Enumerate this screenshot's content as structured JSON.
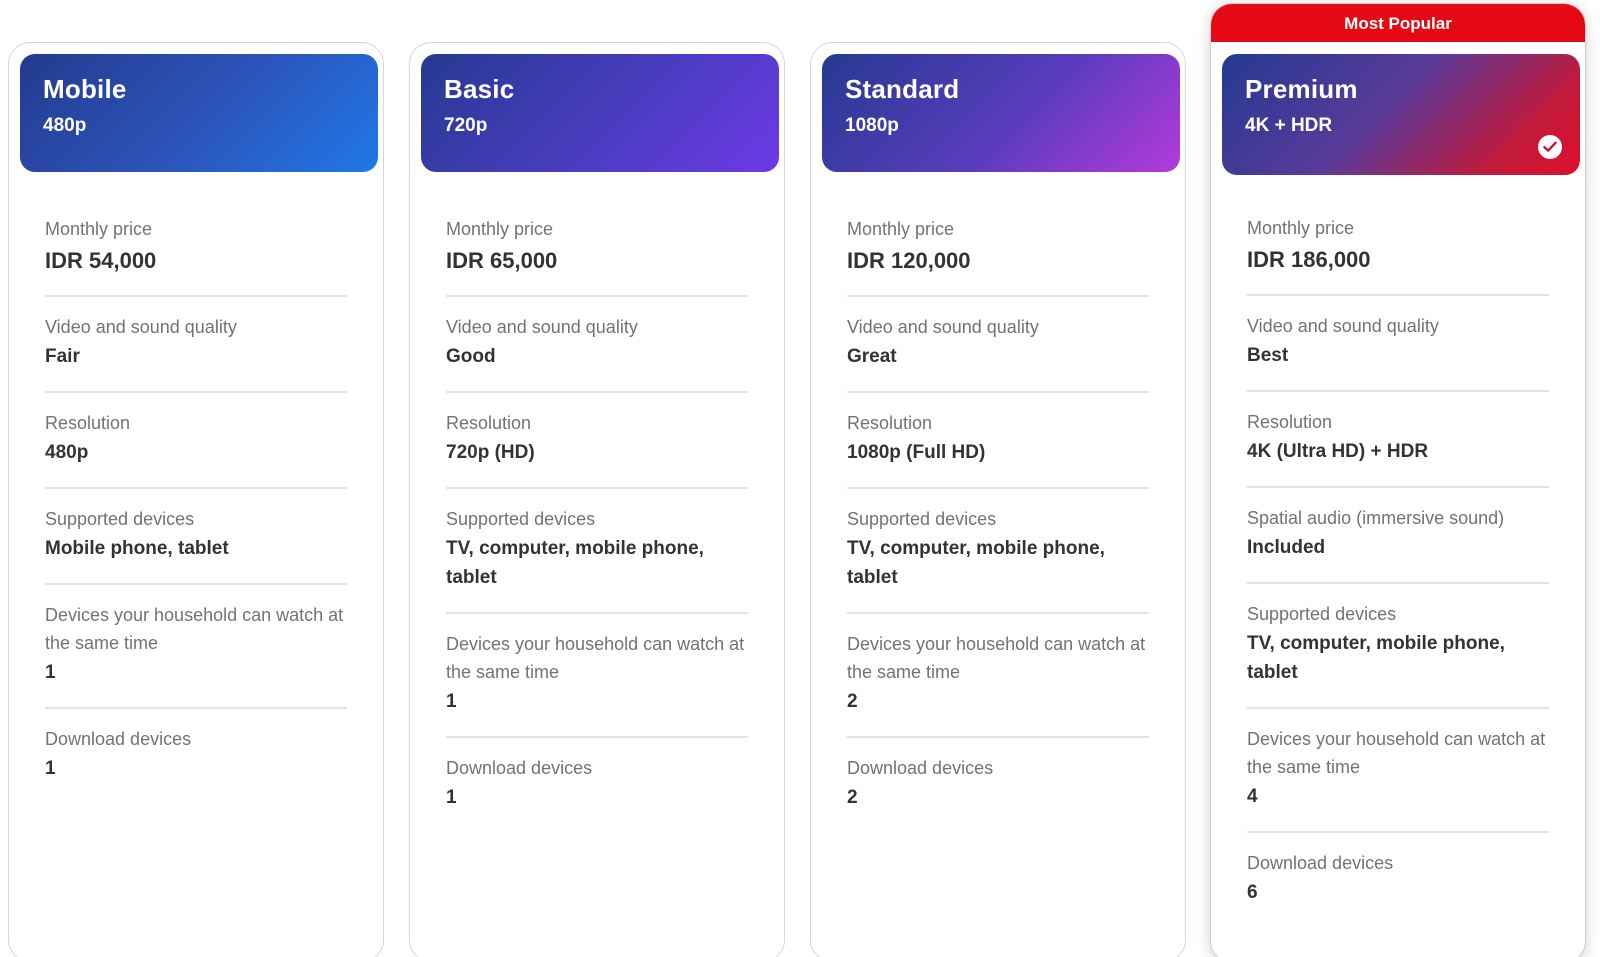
{
  "badge": {
    "label": "Most Popular"
  },
  "plans": [
    {
      "name": "Mobile",
      "subtitle": "480p",
      "rows": [
        {
          "label": "Monthly price",
          "value": "IDR 54,000"
        },
        {
          "label": "Video and sound quality",
          "value": "Fair"
        },
        {
          "label": "Resolution",
          "value": "480p"
        },
        {
          "label": "Supported devices",
          "value": "Mobile phone, tablet"
        },
        {
          "label": "Devices your household can watch at the same time",
          "value": "1"
        },
        {
          "label": "Download devices",
          "value": "1"
        }
      ]
    },
    {
      "name": "Basic",
      "subtitle": "720p",
      "rows": [
        {
          "label": "Monthly price",
          "value": "IDR 65,000"
        },
        {
          "label": "Video and sound quality",
          "value": "Good"
        },
        {
          "label": "Resolution",
          "value": "720p (HD)"
        },
        {
          "label": "Supported devices",
          "value": "TV, computer, mobile phone, tablet"
        },
        {
          "label": "Devices your household can watch at the same time",
          "value": "1"
        },
        {
          "label": "Download devices",
          "value": "1"
        }
      ]
    },
    {
      "name": "Standard",
      "subtitle": "1080p",
      "rows": [
        {
          "label": "Monthly price",
          "value": "IDR 120,000"
        },
        {
          "label": "Video and sound quality",
          "value": "Great"
        },
        {
          "label": "Resolution",
          "value": "1080p (Full HD)"
        },
        {
          "label": "Supported devices",
          "value": "TV, computer, mobile phone, tablet"
        },
        {
          "label": "Devices your household can watch at the same time",
          "value": "2"
        },
        {
          "label": "Download devices",
          "value": "2"
        }
      ]
    },
    {
      "name": "Premium",
      "subtitle": "4K + HDR",
      "selected_icon": "check-circle-icon",
      "rows": [
        {
          "label": "Monthly price",
          "value": "IDR 186,000"
        },
        {
          "label": "Video and sound quality",
          "value": "Best"
        },
        {
          "label": "Resolution",
          "value": "4K (Ultra HD) + HDR"
        },
        {
          "label": "Spatial audio (immersive sound)",
          "value": "Included"
        },
        {
          "label": "Supported devices",
          "value": "TV, computer, mobile phone, tablet"
        },
        {
          "label": "Devices your household can watch at the same time",
          "value": "4"
        },
        {
          "label": "Download devices",
          "value": "6"
        }
      ]
    }
  ],
  "colors": {
    "badge": "#e50914",
    "label": "#737373",
    "value": "#333333",
    "divider": "#e3e3e3"
  }
}
